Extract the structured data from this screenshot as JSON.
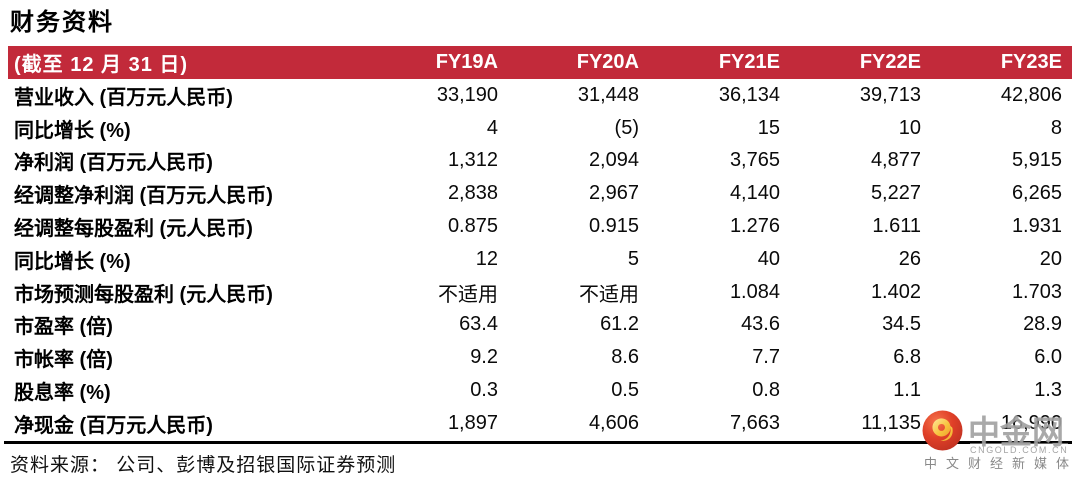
{
  "page": {
    "title": "财务资料"
  },
  "table": {
    "header": {
      "label": "(截至 12 月 31 日)",
      "columns": [
        "FY19A",
        "FY20A",
        "FY21E",
        "FY22E",
        "FY23E"
      ]
    },
    "rows": [
      {
        "label": "营业收入 (百万元人民币)",
        "values": [
          "33,190",
          "31,448",
          "36,134",
          "39,713",
          "42,806"
        ]
      },
      {
        "label": "同比增长 (%)",
        "values": [
          "4",
          "(5)",
          "15",
          "10",
          "8"
        ]
      },
      {
        "label": "净利润 (百万元人民币)",
        "values": [
          "1,312",
          "2,094",
          "3,765",
          "4,877",
          "5,915"
        ]
      },
      {
        "label": "经调整净利润 (百万元人民币)",
        "values": [
          "2,838",
          "2,967",
          "4,140",
          "5,227",
          "6,265"
        ]
      },
      {
        "label": "经调整每股盈利 (元人民币)",
        "values": [
          "0.875",
          "0.915",
          "1.276",
          "1.611",
          "1.931"
        ]
      },
      {
        "label": "同比增长 (%)",
        "values": [
          "12",
          "5",
          "40",
          "26",
          "20"
        ]
      },
      {
        "label": "市场预测每股盈利 (元人民币)",
        "values": [
          "不适用",
          "不适用",
          "1.084",
          "1.402",
          "1.703"
        ]
      },
      {
        "label": "市盈率 (倍)",
        "values": [
          "63.4",
          "61.2",
          "43.6",
          "34.5",
          "28.9"
        ]
      },
      {
        "label": "市帐率 (倍)",
        "values": [
          "9.2",
          "8.6",
          "7.7",
          "6.8",
          "6.0"
        ]
      },
      {
        "label": "股息率 (%)",
        "values": [
          "0.3",
          "0.5",
          "0.8",
          "1.1",
          "1.3"
        ]
      },
      {
        "label": "净现金 (百万元人民币)",
        "values": [
          "1,897",
          "4,606",
          "7,663",
          "11,135",
          "16,990"
        ]
      }
    ],
    "source_note": "资料来源： 公司、彭博及招银国际证券预测"
  },
  "watermark": {
    "brand": "中金网",
    "domain": "CNGOLD.COM.CN",
    "tagline": "中文财经新媒体",
    "logo_icon": "cngold-swirl-logo"
  },
  "colors": {
    "header_bg": "#C22A3A",
    "header_text": "#FFFFFF",
    "watermark_gray": "#919191"
  }
}
